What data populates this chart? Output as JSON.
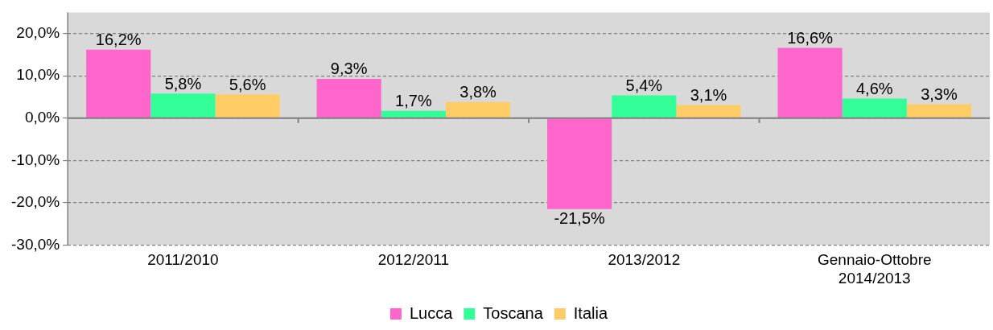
{
  "chart_data": {
    "type": "bar",
    "categories": [
      "2011/2010",
      "2012/2011",
      "2013/2012",
      "Gennaio-Ottobre\n2014/2013"
    ],
    "series": [
      {
        "name": "Lucca",
        "color": "#ff66cc",
        "values": [
          16.2,
          9.3,
          -21.5,
          16.6
        ],
        "value_labels": [
          "16,2%",
          "9,3%",
          "-21,5%",
          "16,6%"
        ]
      },
      {
        "name": "Toscana",
        "color": "#33ff99",
        "values": [
          5.8,
          1.7,
          5.4,
          4.6
        ],
        "value_labels": [
          "5,8%",
          "1,7%",
          "5,4%",
          "4,6%"
        ]
      },
      {
        "name": "Italia",
        "color": "#ffcc66",
        "values": [
          5.6,
          3.8,
          3.1,
          3.3
        ],
        "value_labels": [
          "5,6%",
          "3,8%",
          "3,1%",
          "3,3%"
        ]
      }
    ],
    "ylim": [
      -30,
      25
    ],
    "yticks": [
      {
        "value": -30,
        "label": "-30,0%"
      },
      {
        "value": -20,
        "label": "-20,0%"
      },
      {
        "value": -10,
        "label": "-10,0%"
      },
      {
        "value": 0,
        "label": "0,0%"
      },
      {
        "value": 10,
        "label": "10,0%"
      },
      {
        "value": 20,
        "label": "20,0%"
      }
    ],
    "grid": "y",
    "legend": "bottom"
  }
}
